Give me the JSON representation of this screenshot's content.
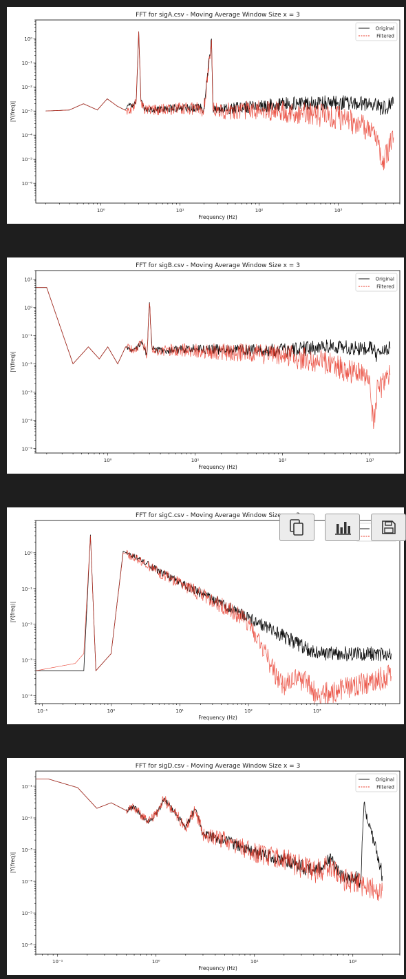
{
  "charts": [
    {
      "title": "FFT for sigA.csv - Moving Average Window Size x = 3",
      "xlabel": "Frequency (Hz)",
      "ylabel": "|Y(freq)|",
      "legend": [
        "Original",
        "Filtered"
      ],
      "xticks": [
        {
          "e": 0,
          "t": "10⁰"
        },
        {
          "e": 1,
          "t": "10¹"
        },
        {
          "e": 2,
          "t": "10²"
        },
        {
          "e": 3,
          "t": "10³"
        }
      ],
      "yticks": [
        {
          "e": 0,
          "t": "10⁰"
        },
        {
          "e": -1,
          "t": "10⁻¹"
        },
        {
          "e": -2,
          "t": "10⁻²"
        },
        {
          "e": -3,
          "t": "10⁻³"
        },
        {
          "e": -4,
          "t": "10⁻⁴"
        },
        {
          "e": -5,
          "t": "10⁻⁵"
        },
        {
          "e": -6,
          "t": "10⁻⁶"
        }
      ]
    },
    {
      "title": "FFT for sigB.csv - Moving Average Window Size x = 3",
      "xlabel": "Frequency (Hz)",
      "ylabel": "|Y(freq)|",
      "legend": [
        "Original",
        "Filtered"
      ],
      "xticks": [
        {
          "e": 0,
          "t": "10⁰"
        },
        {
          "e": 1,
          "t": "10¹"
        },
        {
          "e": 2,
          "t": "10²"
        },
        {
          "e": 3,
          "t": "10³"
        }
      ],
      "yticks": [
        {
          "e": 1,
          "t": "10¹"
        },
        {
          "e": 0,
          "t": "10⁰"
        },
        {
          "e": -1,
          "t": "10⁻¹"
        },
        {
          "e": -2,
          "t": "10⁻²"
        },
        {
          "e": -3,
          "t": "10⁻³"
        },
        {
          "e": -4,
          "t": "10⁻⁴"
        },
        {
          "e": -5,
          "t": "10⁻⁵"
        }
      ]
    },
    {
      "title": "FFT for sigC.csv - Moving Average Window Size x = 3",
      "xlabel": "Frequency (Hz)",
      "ylabel": "|Y(freq)|",
      "legend": [
        "Original",
        "Filtered"
      ],
      "xticks": [
        {
          "e": -1,
          "t": "10⁻¹"
        },
        {
          "e": 0,
          "t": "10⁰"
        },
        {
          "e": 1,
          "t": "10¹"
        },
        {
          "e": 2,
          "t": "10²"
        },
        {
          "e": 3,
          "t": "10³"
        }
      ],
      "yticks": [
        {
          "e": 0,
          "t": "10⁰"
        },
        {
          "e": -1,
          "t": "10⁻¹"
        },
        {
          "e": -2,
          "t": "10⁻²"
        },
        {
          "e": -3,
          "t": "10⁻³"
        },
        {
          "e": -4,
          "t": "10⁻⁴"
        }
      ]
    },
    {
      "title": "FFT for sigD.csv - Moving Average Window Size x = 3",
      "xlabel": "Frequency (Hz)",
      "ylabel": "|Y(freq)|",
      "legend": [
        "Original",
        "Filtered"
      ],
      "xticks": [
        {
          "e": -1,
          "t": "10⁻¹"
        },
        {
          "e": 0,
          "t": "10⁰"
        },
        {
          "e": 1,
          "t": "10¹"
        },
        {
          "e": 2,
          "t": "10²"
        }
      ],
      "yticks": [
        {
          "e": -1,
          "t": "10⁻¹"
        },
        {
          "e": -2,
          "t": "10⁻²"
        },
        {
          "e": -3,
          "t": "10⁻³"
        },
        {
          "e": -4,
          "t": "10⁻⁴"
        },
        {
          "e": -5,
          "t": "10⁻⁵"
        },
        {
          "e": -6,
          "t": "10⁻⁶"
        }
      ]
    }
  ],
  "toolbar": {
    "icons": [
      "copy-icon",
      "chart-icon",
      "save-icon"
    ]
  },
  "colors": {
    "original": "#000000",
    "filtered": "#e8392a",
    "background": "#1e1e1e",
    "axes": "#ffffff"
  },
  "chart_data": [
    {
      "type": "line",
      "title": "FFT for sigA.csv - Moving Average Window Size x = 3",
      "xlabel": "Frequency (Hz)",
      "ylabel": "|Y(freq)|",
      "xscale": "log",
      "yscale": "log",
      "xlim": [
        0.15,
        6000
      ],
      "ylim": [
        1.5e-07,
        6
      ],
      "legend_loc": "top-right",
      "series": [
        {
          "name": "Original",
          "color": "#000000",
          "x": [
            0.2,
            0.4,
            0.6,
            0.9,
            1.2,
            1.6,
            2.0,
            2.3,
            2.6,
            2.8,
            3.0,
            3.2,
            3.5,
            5,
            10,
            20,
            25,
            26,
            30,
            100,
            300,
            1000,
            3000,
            3500,
            5000
          ],
          "y": [
            0.001,
            0.0011,
            0.002,
            0.0011,
            0.0032,
            0.0016,
            0.0011,
            0.0017,
            0.0016,
            0.003,
            2.0,
            0.0025,
            0.0012,
            0.0011,
            0.0014,
            0.0013,
            1.0,
            0.0013,
            0.0012,
            0.0016,
            0.0022,
            0.0022,
            0.002,
            0.0012,
            0.002
          ]
        },
        {
          "name": "Filtered",
          "color": "#e8392a",
          "x": [
            0.2,
            0.4,
            0.6,
            0.9,
            1.2,
            1.6,
            2.0,
            2.3,
            2.6,
            2.8,
            3.0,
            3.2,
            3.5,
            5,
            10,
            20,
            25,
            26,
            30,
            100,
            300,
            1000,
            3000,
            3500,
            5000
          ],
          "y": [
            0.001,
            0.0011,
            0.002,
            0.0011,
            0.0032,
            0.0016,
            0.0011,
            0.0009,
            0.0016,
            0.003,
            2.0,
            0.0025,
            0.0012,
            0.0011,
            0.0013,
            0.0012,
            0.9,
            0.0012,
            0.001,
            0.0011,
            0.0009,
            0.00055,
            0.00015,
            6e-06,
            8e-05
          ]
        }
      ]
    },
    {
      "type": "line",
      "title": "FFT for sigB.csv - Moving Average Window Size x = 3",
      "xlabel": "Frequency (Hz)",
      "ylabel": "|Y(freq)|",
      "xscale": "log",
      "yscale": "log",
      "xlim": [
        0.15,
        2200
      ],
      "ylim": [
        7e-06,
        20
      ],
      "legend_loc": "top-right",
      "series": [
        {
          "name": "Original",
          "color": "#000000",
          "x": [
            0.15,
            0.2,
            0.4,
            0.6,
            0.8,
            1.0,
            1.3,
            1.6,
            2.0,
            2.5,
            2.8,
            3.0,
            3.2,
            3.6,
            5,
            10,
            30,
            100,
            300,
            1000,
            1100,
            1200,
            1700
          ],
          "y": [
            5,
            5,
            0.01,
            0.04,
            0.015,
            0.04,
            0.01,
            0.04,
            0.03,
            0.06,
            0.02,
            1.5,
            0.04,
            0.03,
            0.03,
            0.035,
            0.03,
            0.03,
            0.04,
            0.035,
            0.03,
            0.02,
            0.035
          ]
        },
        {
          "name": "Filtered",
          "color": "#e8392a",
          "x": [
            0.15,
            0.2,
            0.4,
            0.6,
            0.8,
            1.0,
            1.3,
            1.6,
            2.0,
            2.5,
            2.8,
            3.0,
            3.2,
            3.6,
            5,
            10,
            30,
            100,
            300,
            1000,
            1100,
            1200,
            1700
          ],
          "y": [
            5,
            5,
            0.01,
            0.04,
            0.015,
            0.04,
            0.01,
            0.04,
            0.03,
            0.06,
            0.02,
            1.4,
            0.04,
            0.03,
            0.03,
            0.03,
            0.025,
            0.02,
            0.012,
            0.003,
            5e-05,
            0.001,
            0.004
          ]
        }
      ]
    },
    {
      "type": "line",
      "title": "FFT for sigC.csv - Moving Average Window Size x = 3",
      "xlabel": "Frequency (Hz)",
      "ylabel": "|Y(freq)|",
      "xscale": "log",
      "yscale": "log",
      "xlim": [
        0.08,
        16000
      ],
      "ylim": [
        6e-05,
        8
      ],
      "legend_loc": "top-right",
      "series": [
        {
          "name": "Original",
          "color": "#000000",
          "x": [
            0.08,
            0.4,
            0.5,
            0.6,
            1.0,
            1.5,
            2.5,
            5,
            10,
            30,
            100,
            300,
            700,
            1000,
            12000
          ],
          "y": [
            0.0005,
            0.0005,
            3.2,
            0.0005,
            0.0015,
            1.1,
            0.7,
            0.3,
            0.15,
            0.05,
            0.015,
            0.005,
            0.002,
            0.0015,
            0.0015
          ]
        },
        {
          "name": "Filtered",
          "color": "#e8392a",
          "x": [
            0.08,
            0.3,
            0.4,
            0.5,
            0.6,
            1.0,
            1.5,
            2.5,
            5,
            10,
            30,
            100,
            300,
            600,
            1000,
            12000
          ],
          "y": [
            0.0005,
            0.0008,
            0.0015,
            3.0,
            0.0005,
            0.0015,
            1.0,
            0.65,
            0.28,
            0.14,
            0.045,
            0.012,
            0.0002,
            0.0003,
            0.0001,
            0.00035
          ]
        }
      ]
    },
    {
      "type": "line",
      "title": "FFT for sigD.csv - Moving Average Window Size x = 3",
      "xlabel": "Frequency (Hz)",
      "ylabel": "|Y(freq)|",
      "xscale": "log",
      "yscale": "log",
      "xlim": [
        0.06,
        300
      ],
      "ylim": [
        5e-07,
        0.3
      ],
      "legend_loc": "top-right",
      "series": [
        {
          "name": "Original",
          "color": "#000000",
          "x": [
            0.06,
            0.08,
            0.16,
            0.25,
            0.35,
            0.5,
            0.6,
            0.8,
            1.0,
            1.2,
            1.5,
            2,
            2.5,
            3,
            5,
            10,
            20,
            40,
            60,
            80,
            100,
            120,
            130,
            200
          ],
          "y": [
            0.17,
            0.17,
            0.09,
            0.02,
            0.03,
            0.017,
            0.022,
            0.008,
            0.012,
            0.04,
            0.016,
            0.005,
            0.018,
            0.003,
            0.002,
            0.0008,
            0.0005,
            0.0002,
            0.0005,
            0.00012,
            0.00015,
            0.0001,
            0.03,
            0.00015
          ]
        },
        {
          "name": "Filtered",
          "color": "#e8392a",
          "x": [
            0.06,
            0.08,
            0.16,
            0.25,
            0.35,
            0.5,
            0.6,
            0.8,
            1.0,
            1.2,
            1.5,
            2,
            2.5,
            3,
            5,
            10,
            20,
            40,
            60,
            80,
            100,
            120,
            130,
            200
          ],
          "y": [
            0.17,
            0.17,
            0.09,
            0.02,
            0.03,
            0.017,
            0.022,
            0.008,
            0.012,
            0.04,
            0.016,
            0.005,
            0.018,
            0.003,
            0.002,
            0.0008,
            0.0005,
            0.0002,
            0.0003,
            0.0001,
            0.0001,
            8e-05,
            6e-05,
            5e-05
          ]
        }
      ]
    }
  ]
}
